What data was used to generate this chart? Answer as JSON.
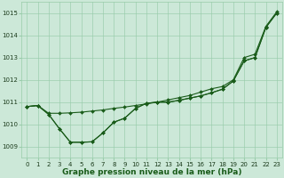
{
  "xlabel": "Graphe pression niveau de la mer (hPa)",
  "ylim": [
    1008.5,
    1015.5
  ],
  "xlim": [
    -0.5,
    23.5
  ],
  "yticks": [
    1009,
    1010,
    1011,
    1012,
    1013,
    1014,
    1015
  ],
  "xticks": [
    0,
    1,
    2,
    3,
    4,
    5,
    6,
    7,
    8,
    9,
    10,
    11,
    12,
    13,
    14,
    15,
    16,
    17,
    18,
    19,
    20,
    21,
    22,
    23
  ],
  "bg_color": "#cce8d8",
  "grid_color": "#99ccaa",
  "line_color": "#1a5c1a",
  "line1_smooth": [
    1010.8,
    1010.85,
    1010.5,
    1010.5,
    1010.52,
    1010.55,
    1010.6,
    1010.65,
    1010.72,
    1010.78,
    1010.85,
    1010.92,
    1011.0,
    1011.1,
    1011.2,
    1011.3,
    1011.45,
    1011.6,
    1011.7,
    1012.0,
    1013.0,
    1013.15,
    1014.4,
    1015.05
  ],
  "line2_dip": [
    1010.8,
    1010.85,
    1010.45,
    1009.8,
    1009.2,
    1009.2,
    1009.22,
    1009.62,
    1010.1,
    1010.28,
    1010.72,
    1010.95,
    1011.0,
    1011.0,
    1011.08,
    1011.18,
    1011.28,
    1011.42,
    1011.58,
    1011.95,
    1012.85,
    1013.0,
    1014.35,
    1015.0
  ],
  "line3_dip2": [
    1010.8,
    1010.85,
    1010.45,
    1009.8,
    1009.2,
    1009.2,
    1009.22,
    1009.62,
    1010.1,
    1010.28,
    1010.72,
    1010.95,
    1011.0,
    1011.0,
    1011.08,
    1011.18,
    1011.28,
    1011.42,
    1011.58,
    1011.95,
    1012.85,
    1013.0,
    1014.35,
    1015.0
  ],
  "line_width": 0.8,
  "marker": "D",
  "marker_size": 2.0,
  "xlabel_fontsize": 6.5,
  "tick_fontsize": 5.0
}
